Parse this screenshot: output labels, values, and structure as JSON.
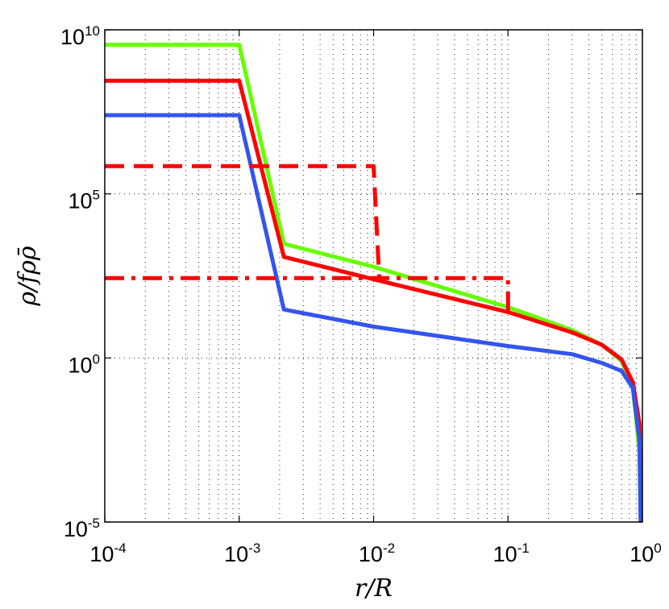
{
  "chart_data": {
    "type": "line",
    "title": "",
    "xlabel": "r/R",
    "ylabel": "ρ/fρρ̄",
    "x_scale": "log",
    "y_scale": "log",
    "xlim": [
      0.0001,
      1
    ],
    "ylim": [
      1e-05,
      10000000000
    ],
    "x_ticks": [
      {
        "base": "10",
        "exp": "-4"
      },
      {
        "base": "10",
        "exp": "-3"
      },
      {
        "base": "10",
        "exp": "-2"
      },
      {
        "base": "10",
        "exp": "-1"
      },
      {
        "base": "10",
        "exp": "0"
      }
    ],
    "y_ticks": [
      {
        "base": "10",
        "exp": "-5"
      },
      {
        "base": "10",
        "exp": "0"
      },
      {
        "base": "10",
        "exp": "5"
      },
      {
        "base": "10",
        "exp": "10"
      }
    ],
    "grid": true,
    "legend": "none",
    "series": [
      {
        "color": "#66ff00",
        "style": "solid",
        "points": [
          [
            0.0001,
            3500000000.0
          ],
          [
            0.001,
            3500000000.0
          ],
          [
            0.00215,
            3000.0
          ],
          [
            0.01,
            600.0
          ],
          [
            0.1,
            35.0
          ],
          [
            0.3,
            7.0
          ],
          [
            0.5,
            2.5
          ],
          [
            0.7,
            0.8
          ],
          [
            0.85,
            0.12
          ],
          [
            0.95,
            0.0015
          ],
          [
            0.97,
            1e-05
          ]
        ]
      },
      {
        "color": "#ff0000",
        "style": "solid",
        "points": [
          [
            0.0001,
            280000000.0
          ],
          [
            0.001,
            280000000.0
          ],
          [
            0.00215,
            1200.0
          ],
          [
            0.01,
            250.0
          ],
          [
            0.1,
            25.0
          ],
          [
            0.3,
            6.0
          ],
          [
            0.5,
            2.5
          ],
          [
            0.7,
            0.9
          ],
          [
            0.85,
            0.18
          ],
          [
            0.95,
            0.01
          ],
          [
            0.97,
            3e-05
          ]
        ]
      },
      {
        "color": "#3355ee",
        "style": "solid",
        "points": [
          [
            0.0001,
            25000000.0
          ],
          [
            0.001,
            25000000.0
          ],
          [
            0.00215,
            30.0
          ],
          [
            0.01,
            9.0
          ],
          [
            0.1,
            2.3
          ],
          [
            0.3,
            1.3
          ],
          [
            0.5,
            0.7
          ],
          [
            0.7,
            0.4
          ],
          [
            0.85,
            0.12
          ],
          [
            0.95,
            0.003
          ],
          [
            0.97,
            1e-05
          ]
        ]
      },
      {
        "color": "#ff0000",
        "style": "dashed",
        "points": [
          [
            0.0001,
            700000.0
          ],
          [
            0.01,
            700000.0
          ],
          [
            0.011,
            300.0
          ]
        ]
      },
      {
        "color": "#ff0000",
        "style": "dashdot",
        "points": [
          [
            0.0001,
            270.0
          ],
          [
            0.1,
            270.0
          ],
          [
            0.1,
            25.0
          ]
        ]
      }
    ]
  }
}
